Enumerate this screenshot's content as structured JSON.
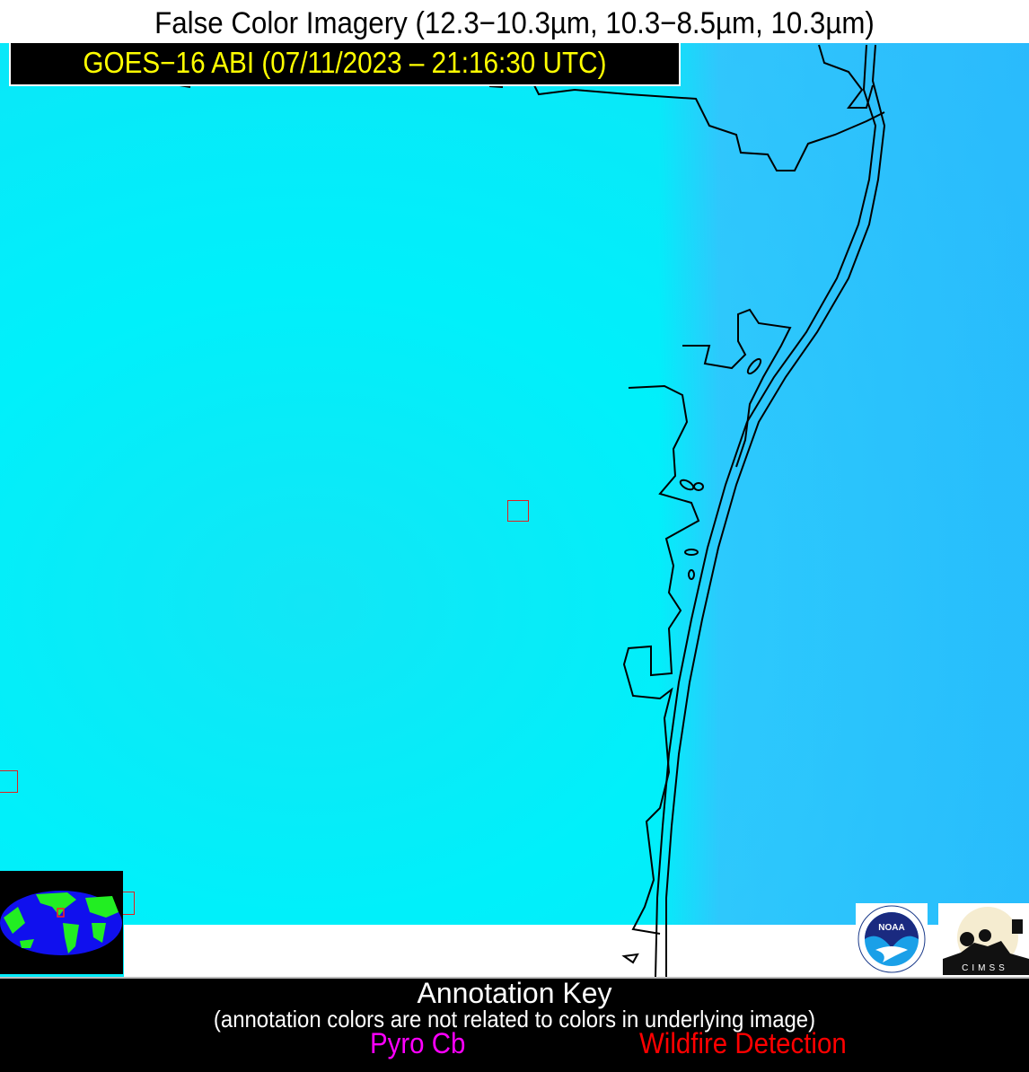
{
  "title": "False Color Imagery (12.3−10.3µm, 10.3−8.5µm, 10.3µm)",
  "timestamp": "GOES−16 ABI (07/11/2023 – 21:16:30 UTC)",
  "annotation_key": {
    "title": "Annotation Key",
    "subtitle": "(annotation colors are not related to colors in underlying image)",
    "items": [
      {
        "label": "Pyro Cb",
        "color": "#ff00ff"
      },
      {
        "label": "Wildfire Detection",
        "color": "#ff0000"
      }
    ]
  },
  "logos": {
    "noaa": "NOAA",
    "cimss": "CIMSS"
  },
  "colors": {
    "imagery_land": "#00f0fa",
    "imagery_ocean": "#40c8fa",
    "wildfire_box": "#e02020",
    "timestamp_text": "#ffff00"
  },
  "wildfire_detections": 3
}
